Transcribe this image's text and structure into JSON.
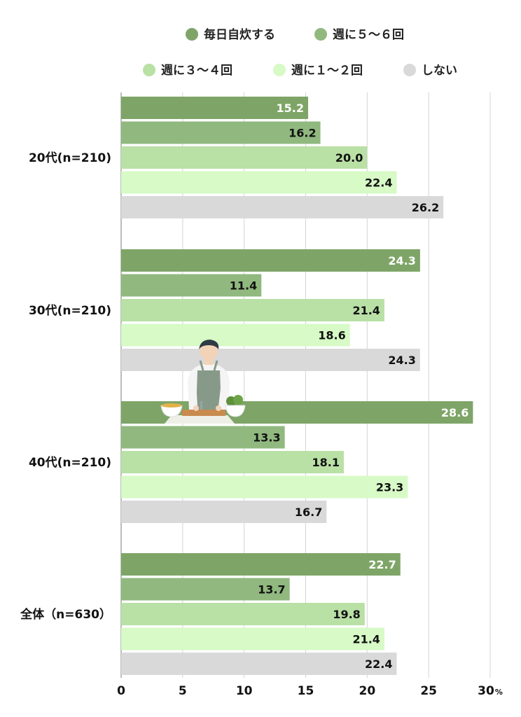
{
  "chart_data": {
    "type": "bar",
    "orientation": "horizontal",
    "categories": [
      "20代(n=210)",
      "30代(n=210)",
      "40代(n=210)",
      "全体（n=630）"
    ],
    "series": [
      {
        "name": "毎日自炊する",
        "color": "#7ea567",
        "label_color": "#ffffff",
        "values": [
          15.2,
          24.3,
          28.6,
          22.7
        ]
      },
      {
        "name": "週に５～６回",
        "color": "#91b97f",
        "label_color": "#111111",
        "values": [
          16.2,
          11.4,
          13.3,
          13.7
        ]
      },
      {
        "name": "週に３～４回",
        "color": "#b9e0a5",
        "label_color": "#111111",
        "values": [
          20.0,
          21.4,
          18.1,
          19.8
        ]
      },
      {
        "name": "週に１～２回",
        "color": "#d7fac7",
        "label_color": "#111111",
        "values": [
          22.4,
          18.6,
          23.3,
          21.4
        ]
      },
      {
        "name": "しない",
        "color": "#d9d9d9",
        "label_color": "#111111",
        "values": [
          26.2,
          24.3,
          16.7,
          22.4
        ]
      }
    ],
    "xlim": [
      0,
      30
    ],
    "x_ticks": [
      {
        "value": 0,
        "label": "0"
      },
      {
        "value": 5,
        "label": "5"
      },
      {
        "value": 10,
        "label": "10"
      },
      {
        "value": 15,
        "label": "15"
      },
      {
        "value": 20,
        "label": "20"
      },
      {
        "value": 25,
        "label": "25"
      },
      {
        "value": 30,
        "label": "30"
      }
    ],
    "x_unit": "%",
    "grid": true,
    "legend_position": "top",
    "illustration": "cooking-person-icon"
  }
}
